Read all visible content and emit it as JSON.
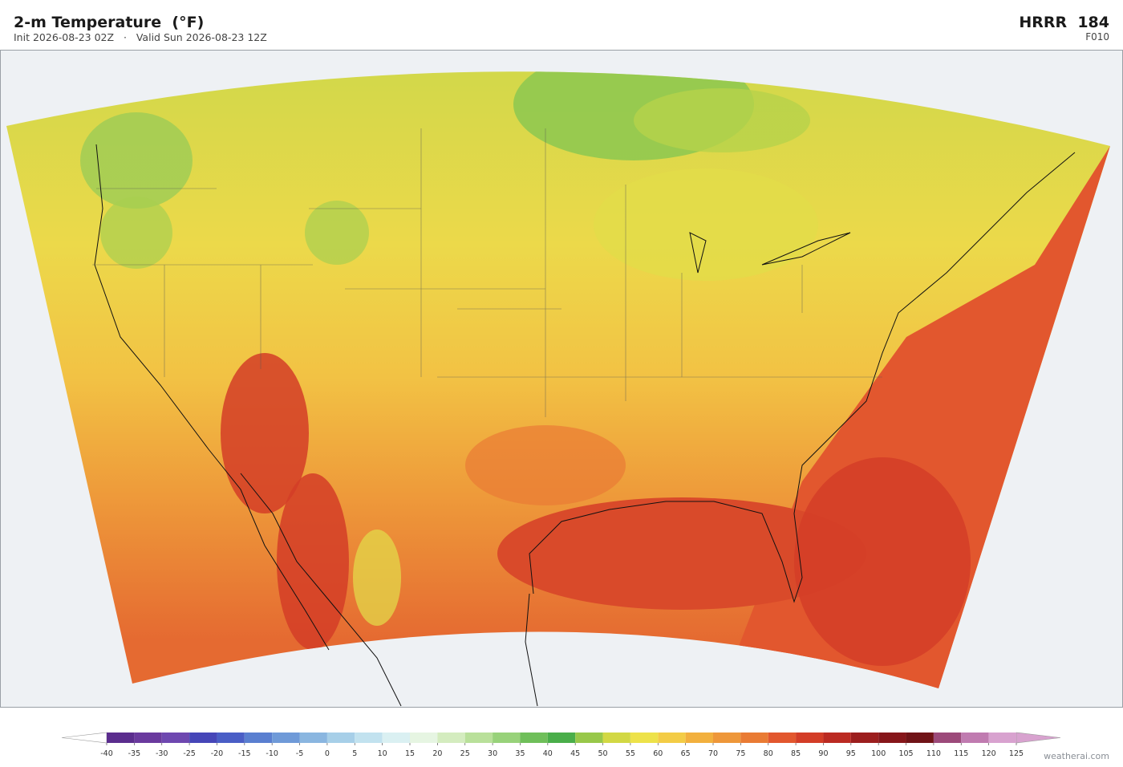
{
  "header": {
    "title": "2-m Temperature  (°F)",
    "subtitle": "Init 2026-08-23 02Z   ·   Valid Sun 2026-08-23 12Z",
    "model": "HRRR  184",
    "forecast": "F010"
  },
  "colorbar": {
    "ticks": [
      -40,
      -35,
      -30,
      -25,
      -20,
      -15,
      -10,
      -5,
      0,
      5,
      10,
      15,
      20,
      25,
      30,
      35,
      40,
      45,
      50,
      55,
      60,
      65,
      70,
      75,
      80,
      85,
      90,
      95,
      100,
      105,
      110,
      115,
      120,
      125
    ],
    "colors": [
      "#5b2d8e",
      "#6a3a9e",
      "#6e48b0",
      "#4646b8",
      "#4a5ec6",
      "#5a7fd0",
      "#6f9ad8",
      "#8ab6e0",
      "#a7cfe8",
      "#c2e2ef",
      "#daf0f2",
      "#e6f5e2",
      "#d4ecbf",
      "#b9e09a",
      "#98d27a",
      "#6fbf5a",
      "#4aae4a",
      "#98c84a",
      "#d2d844",
      "#ede24a",
      "#f3cc46",
      "#f2b03e",
      "#ee973a",
      "#e97b34",
      "#e2572e",
      "#d33d27",
      "#bb2a22",
      "#9c1e1e",
      "#86161a",
      "#701317",
      "#9c4a7a",
      "#c07bb0",
      "#d8a2cf"
    ],
    "under_color": "#ffffff",
    "over_color": "#d8a2cf"
  },
  "credit": "weatherai.com"
}
